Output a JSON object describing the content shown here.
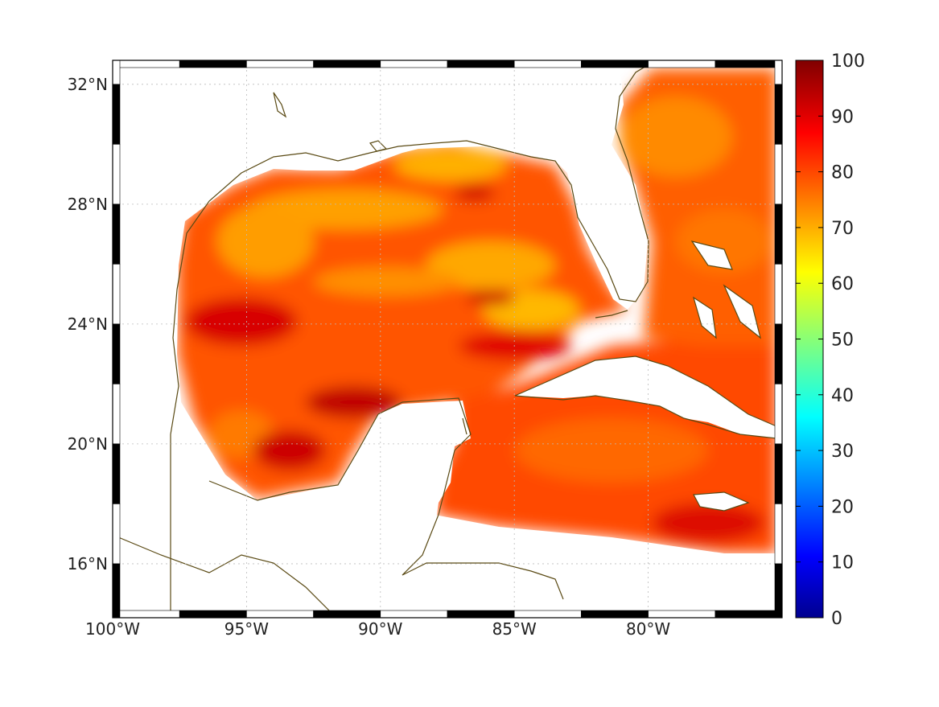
{
  "map": {
    "lon_range": [
      -100,
      -75
    ],
    "lat_range": [
      14.2,
      32.8
    ],
    "x_ticks": [
      {
        "value": -100,
        "label": "100°W"
      },
      {
        "value": -95,
        "label": "95°W"
      },
      {
        "value": -90,
        "label": "90°W"
      },
      {
        "value": -85,
        "label": "85°W"
      },
      {
        "value": -80,
        "label": "80°W"
      }
    ],
    "y_ticks": [
      {
        "value": 32,
        "label": "32°N"
      },
      {
        "value": 28,
        "label": "28°N"
      },
      {
        "value": 24,
        "label": "24°N"
      },
      {
        "value": 20,
        "label": "20°N"
      },
      {
        "value": 16,
        "label": "16°N"
      }
    ],
    "grid": true,
    "coastline_color": "#5a4a14"
  },
  "colorbar": {
    "colormap": "jet",
    "range": [
      0,
      100
    ],
    "ticks": [
      {
        "value": 100,
        "label": "100"
      },
      {
        "value": 90,
        "label": "90"
      },
      {
        "value": 80,
        "label": "80"
      },
      {
        "value": 70,
        "label": "70"
      },
      {
        "value": 60,
        "label": "60"
      },
      {
        "value": 50,
        "label": "50"
      },
      {
        "value": 40,
        "label": "40"
      },
      {
        "value": 30,
        "label": "30"
      },
      {
        "value": 20,
        "label": "20"
      },
      {
        "value": 10,
        "label": "10"
      },
      {
        "value": 0,
        "label": "0"
      }
    ]
  },
  "field": {
    "description_values": "gridded values 70-95 over Gulf of Mexico and NW Caribbean",
    "typical_value": 82,
    "min_value": 68,
    "max_value": 96
  }
}
